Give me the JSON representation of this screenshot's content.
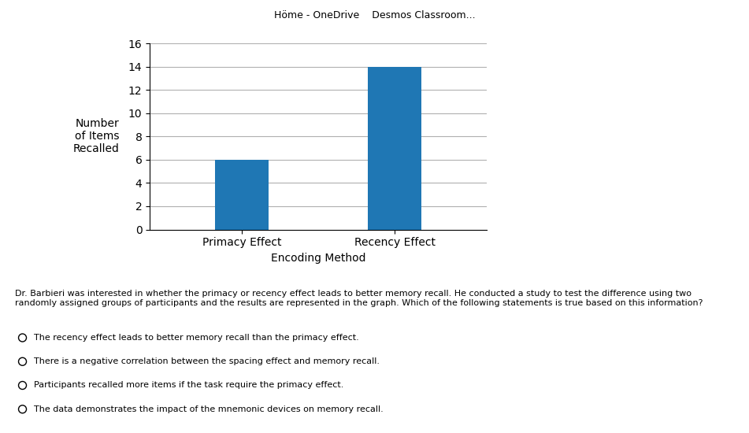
{
  "chart_data": {
    "type": "bar",
    "categories": [
      "Primacy Effect",
      "Recency Effect"
    ],
    "values": [
      6,
      14
    ],
    "xlabel": "Encoding Method",
    "ylabel": "Number\nof Items\nRecalled",
    "ylim": [
      0,
      16
    ],
    "yticks": [
      0,
      2,
      4,
      6,
      8,
      10,
      12,
      14,
      16
    ],
    "grid": true,
    "annotations": [
      "Höme - OneDrive    Desmos Classroom...",
      "Dr. Barbieri was interested in whether the primacy or recency effect leads to better memory recall. He conducted a study to test the difference using two\nrandomly assigned groups of participants and the results are represented in the graph. Which of the following statements is true based on this information?",
      "The recency effect leads to better memory recall than the primacy effect.",
      "There is a negative correlation between the spacing effect and memory recall.",
      "Participants recalled more items if the task require the primacy effect.",
      "The data demonstrates the impact of the mnemonic devices on memory recall."
    ]
  }
}
